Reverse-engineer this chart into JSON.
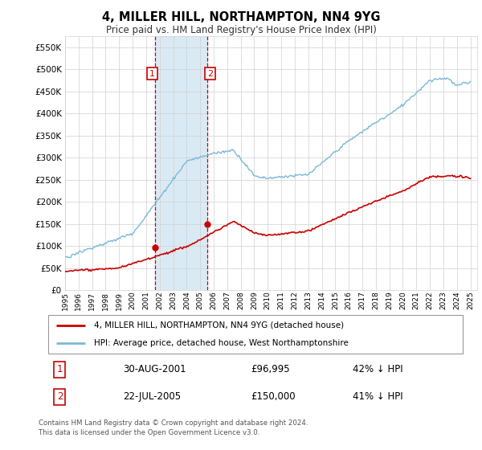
{
  "title": "4, MILLER HILL, NORTHAMPTON, NN4 9YG",
  "subtitle": "Price paid vs. HM Land Registry's House Price Index (HPI)",
  "ytick_values": [
    0,
    50000,
    100000,
    150000,
    200000,
    250000,
    300000,
    350000,
    400000,
    450000,
    500000,
    550000
  ],
  "ylim": [
    0,
    575000
  ],
  "hpi_color": "#7ab8d9",
  "price_color": "#cc0000",
  "shaded_color": "#daeaf5",
  "background_color": "#ffffff",
  "grid_color": "#d0d0d0",
  "legend_entry1": "4, MILLER HILL, NORTHAMPTON, NN4 9YG (detached house)",
  "legend_entry2": "HPI: Average price, detached house, West Northamptonshire",
  "transaction1_date": "30-AUG-2001",
  "transaction1_price": "£96,995",
  "transaction1_hpi": "42% ↓ HPI",
  "transaction1_x": 2001.66,
  "transaction1_y": 96995,
  "transaction2_date": "22-JUL-2005",
  "transaction2_price": "£150,000",
  "transaction2_hpi": "41% ↓ HPI",
  "transaction2_x": 2005.55,
  "transaction2_y": 150000,
  "shade_x1": 2001.66,
  "shade_x2": 2005.55,
  "footnote": "Contains HM Land Registry data © Crown copyright and database right 2024.\nThis data is licensed under the Open Government Licence v3.0.",
  "xmin": 1995.0,
  "xmax": 2025.5
}
